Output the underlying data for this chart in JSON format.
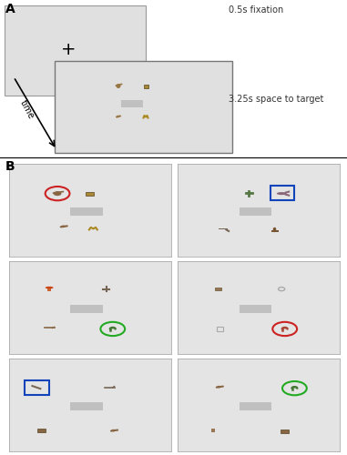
{
  "fig_width": 3.81,
  "fig_height": 5.0,
  "dpi": 100,
  "bg_color": "#ffffff",
  "panel_bg": "#e0e0e0",
  "panel_bg_b": "#e4e4e4",
  "label_A": "A",
  "label_B": "B",
  "fixation_label": "0.5s fixation",
  "trial_label": "3.25s space to target",
  "time_label": "time",
  "red": "#cc2222",
  "green": "#22aa22",
  "blue": "#1144bb",
  "word_color": "#c0c0c0",
  "icon_color": "#888855",
  "icon_color2": "#664422"
}
